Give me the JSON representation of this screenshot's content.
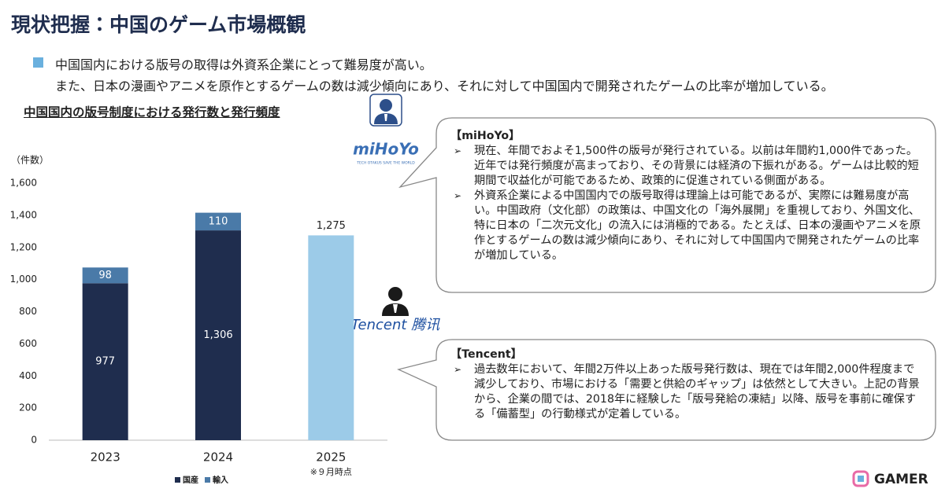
{
  "header": {
    "title": "現状把握：中国のゲーム市場概観",
    "lead": [
      "中国国内における版号の取得は外資系企業にとって難易度が高い。",
      "また、日本の漫画やアニメを原作とするゲームの数は減少傾向にあり、それに対して中国国内で開発されたゲームの比率が増加している。"
    ]
  },
  "chart_data": {
    "type": "stacked-bar",
    "title": "中国国内の版号制度における発行数と発行頻度",
    "y_unit": "（件数）",
    "categories": [
      "2023",
      "2024",
      "2025"
    ],
    "series": [
      {
        "name": "国産",
        "color": "#1f2d4e",
        "values": [
          977,
          1306,
          null
        ],
        "value_labels": [
          "977",
          "1,306",
          null
        ]
      },
      {
        "name": "輸入",
        "color": "#4a7aa8",
        "values": [
          98,
          110,
          null
        ]
      },
      {
        "color": "#9ccbe8",
        "values": [
          null,
          null,
          1275
        ],
        "value_labels": [
          null,
          null,
          "1,275"
        ]
      }
    ],
    "annotation": "※９月時点",
    "ylim": [
      0,
      1600
    ],
    "yticks": [
      0,
      200,
      400,
      600,
      800,
      {
        "value": 1000,
        "label": "1,000"
      },
      {
        "value": 1200,
        "label": "1,200"
      },
      {
        "value": 1400,
        "label": "1,400"
      },
      {
        "value": 1600,
        "label": "1,600"
      }
    ]
  },
  "callouts": [
    {
      "logo": "miHoYo",
      "logo_tagline": "TECH OTAKUS SAVE THE WORLD",
      "heading": "【miHoYo】",
      "items": [
        "現在、年間でおよそ1,500件の版号が発行されている。以前は年間約1,000件であった。近年では発行頻度が高まっており、その背景には経済の下振れがある。ゲームは比較的短期間で収益化が可能であるため、政策的に促進されている側面がある。",
        "外資系企業による中国国内での版号取得は理論上は可能であるが、実際には難易度が高い。中国政府（文化部）の政策は、中国文化の「海外展開」を重視しており、外国文化、特に日本の「二次元文化」の流入には消極的である。たとえば、日本の漫画やアニメを原作とするゲームの数は減少傾向にあり、それに対して中国国内で開発されたゲームの比率が増加している。"
      ]
    },
    {
      "logo": "Tencent 腾讯",
      "heading": "【Tencent】",
      "items": [
        "過去数年において、年間2万件以上あった版号発行数は、現在では年間2,000件程度まで減少しており、市場における「需要と供給のギャップ」は依然として大きい。上記の背景から、企業の間では、2018年に経験した「版号発給の凍結」以降、版号を事前に確保する「備蓄型」の行動様式が定着している。"
      ]
    }
  ],
  "footer": {
    "brand": "GAMER"
  }
}
